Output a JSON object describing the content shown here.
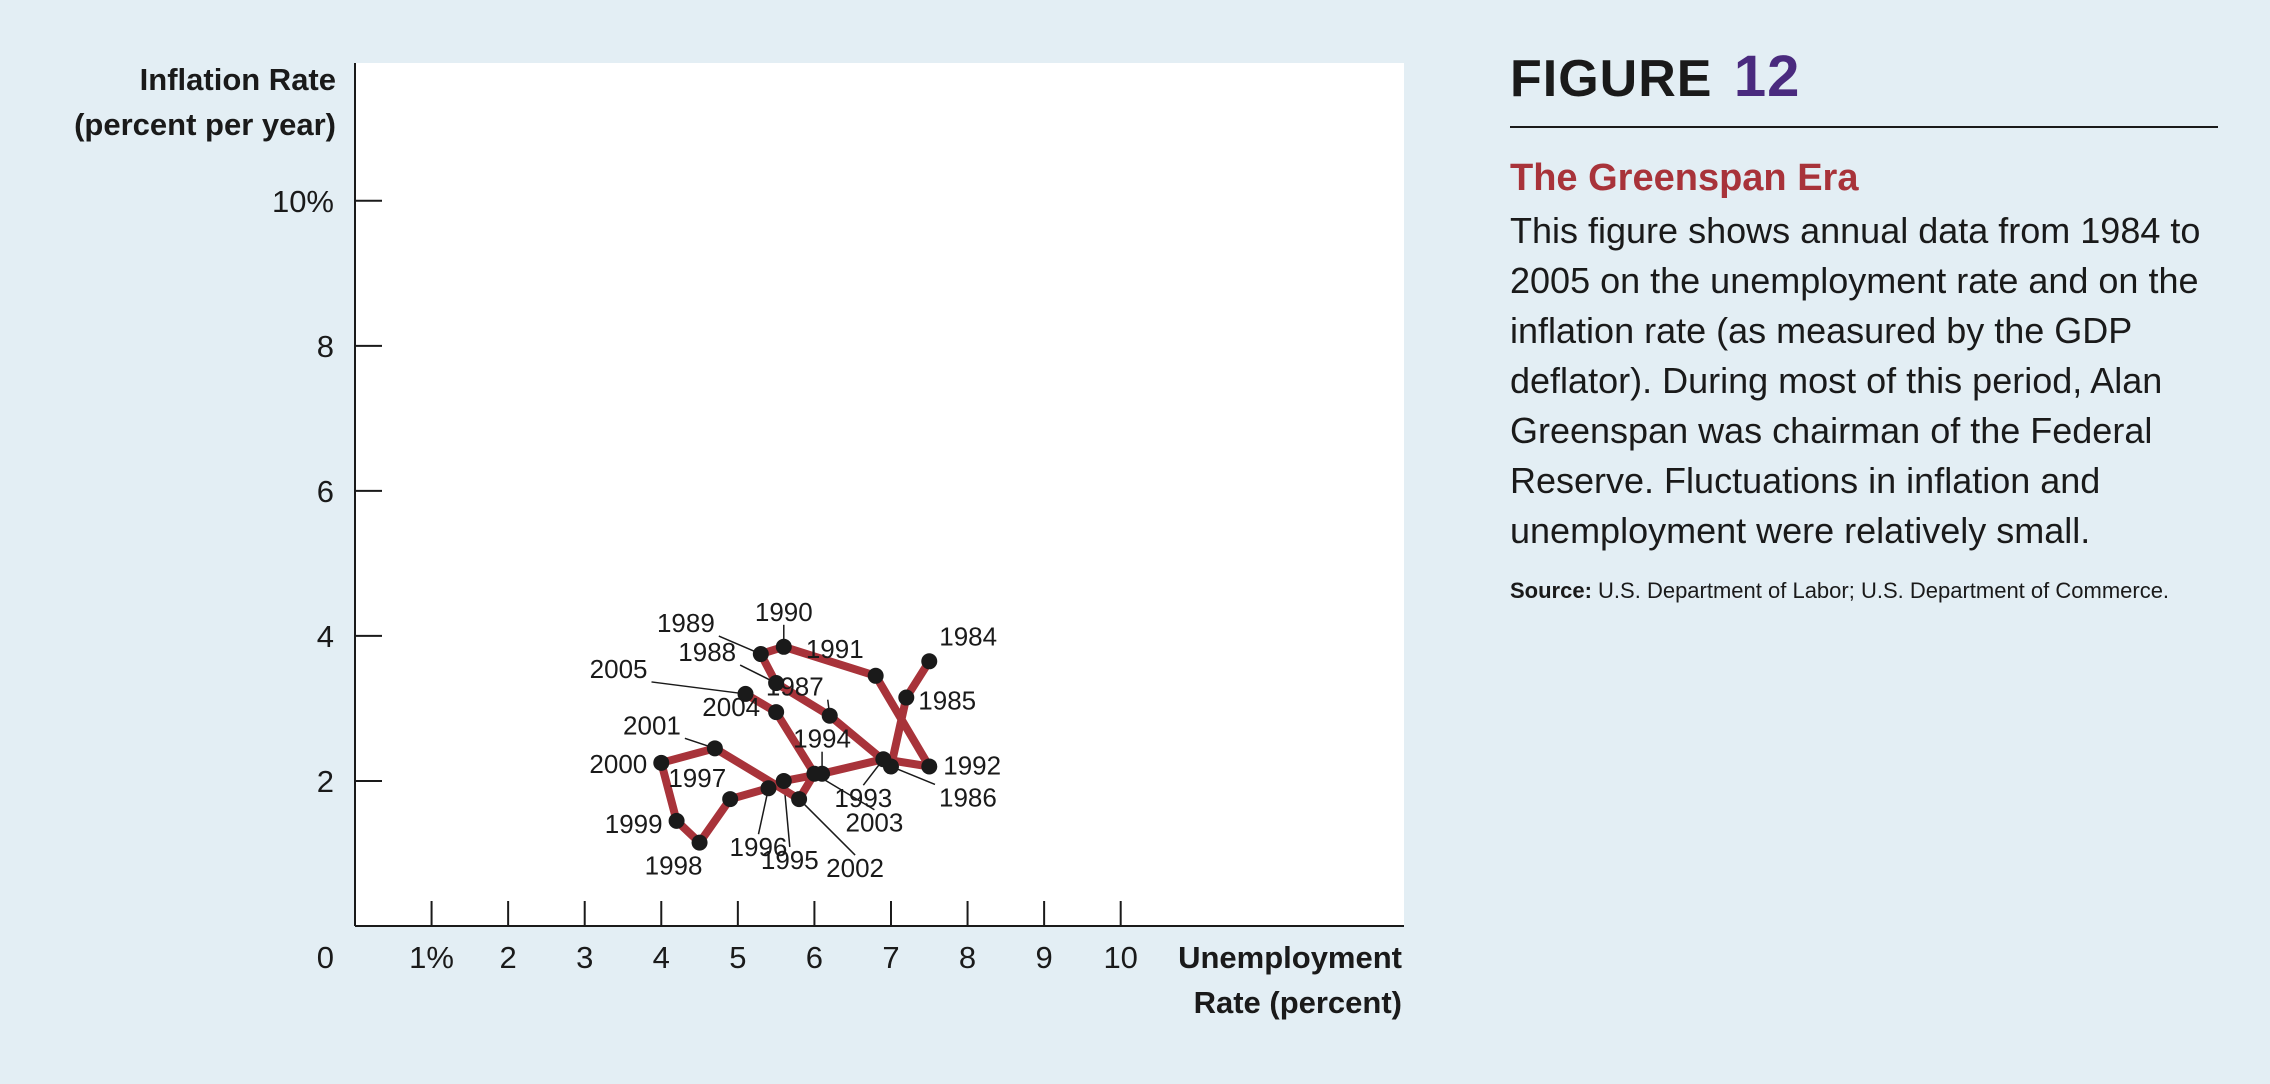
{
  "figure": {
    "label": "FIGURE",
    "number": "12",
    "title": "The Greenspan Era",
    "body": "This figure shows annual data from 1984 to 2005 on the unemployment rate and on the inflation rate (as measured by the GDP deflator). During most of this period, Alan Greenspan was chairman of the Federal Reserve. Fluctuations in inflation and unemployment were relatively small.",
    "source_label": "Source:",
    "source_text": "U.S. Department of Labor; U.S. Department of Commerce."
  },
  "colors": {
    "background": "#e3eef4",
    "plot_area": "#ffffff",
    "line": "#a8333a",
    "point": "#1a1a1a",
    "title_accent": "#a8333a",
    "number_accent": "#4a2a7e"
  },
  "chart_data": {
    "type": "line",
    "xlabel_lines": [
      "Unemployment",
      "Rate (percent)"
    ],
    "ylabel_lines": [
      "Inflation Rate",
      "(percent per year)"
    ],
    "xlim": [
      0,
      13.7
    ],
    "ylim": [
      0,
      11.9
    ],
    "origin_label": "0",
    "x_ticks": [
      {
        "value": 1,
        "label": "1%"
      },
      {
        "value": 2,
        "label": "2"
      },
      {
        "value": 3,
        "label": "3"
      },
      {
        "value": 4,
        "label": "4"
      },
      {
        "value": 5,
        "label": "5"
      },
      {
        "value": 6,
        "label": "6"
      },
      {
        "value": 7,
        "label": "7"
      },
      {
        "value": 8,
        "label": "8"
      },
      {
        "value": 9,
        "label": "9"
      },
      {
        "value": 10,
        "label": "10"
      }
    ],
    "y_ticks": [
      {
        "value": 2,
        "label": "2"
      },
      {
        "value": 4,
        "label": "4"
      },
      {
        "value": 6,
        "label": "6"
      },
      {
        "value": 8,
        "label": "8"
      },
      {
        "value": 10,
        "label": "10%"
      }
    ],
    "grid": false,
    "series": [
      {
        "points": [
          {
            "year": "1984",
            "x": 7.5,
            "y": 3.65
          },
          {
            "year": "1985",
            "x": 7.2,
            "y": 3.15
          },
          {
            "year": "1986",
            "x": 7.0,
            "y": 2.2
          },
          {
            "year": "1987",
            "x": 6.2,
            "y": 2.9
          },
          {
            "year": "1988",
            "x": 5.5,
            "y": 3.35
          },
          {
            "year": "1989",
            "x": 5.3,
            "y": 3.75
          },
          {
            "year": "1990",
            "x": 5.6,
            "y": 3.85
          },
          {
            "year": "1991",
            "x": 6.8,
            "y": 3.45
          },
          {
            "year": "1992",
            "x": 7.5,
            "y": 2.2
          },
          {
            "year": "1993",
            "x": 6.9,
            "y": 2.3
          },
          {
            "year": "1994",
            "x": 6.1,
            "y": 2.1
          },
          {
            "year": "1995",
            "x": 5.6,
            "y": 2.0
          },
          {
            "year": "1996",
            "x": 5.4,
            "y": 1.9
          },
          {
            "year": "1997",
            "x": 4.9,
            "y": 1.75
          },
          {
            "year": "1998",
            "x": 4.5,
            "y": 1.15
          },
          {
            "year": "1999",
            "x": 4.2,
            "y": 1.45
          },
          {
            "year": "2000",
            "x": 4.0,
            "y": 2.25
          },
          {
            "year": "2001",
            "x": 4.7,
            "y": 2.45
          },
          {
            "year": "2002",
            "x": 5.8,
            "y": 1.75
          },
          {
            "year": "2003",
            "x": 6.0,
            "y": 2.1
          },
          {
            "year": "2004",
            "x": 5.5,
            "y": 2.95
          },
          {
            "year": "2005",
            "x": 5.1,
            "y": 3.2
          }
        ]
      }
    ]
  }
}
